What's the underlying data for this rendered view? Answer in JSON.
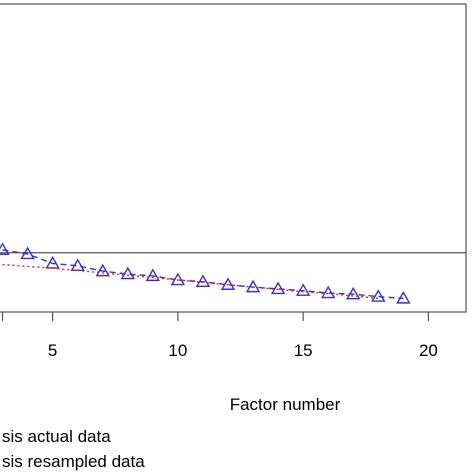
{
  "chart_data": {
    "type": "line",
    "xlabel": "Factor number",
    "ylabel": "",
    "xlim": [
      2.5,
      21.5
    ],
    "ylim": [
      0,
      5.2
    ],
    "x_ticks": [
      5,
      10,
      15,
      20
    ],
    "x_tick_labels": [
      "5",
      "10",
      "15",
      "20"
    ],
    "reference_line_y": 1,
    "series": [
      {
        "marker": "triangle",
        "line_style": "dashed",
        "color": "#3333cc",
        "x": [
          3,
          4,
          5,
          6,
          7,
          8,
          9,
          10,
          11,
          12,
          13,
          14,
          15,
          16,
          17,
          18,
          19
        ],
        "y": [
          1.05,
          0.98,
          0.82,
          0.78,
          0.69,
          0.64,
          0.61,
          0.54,
          0.51,
          0.46,
          0.42,
          0.39,
          0.36,
          0.32,
          0.3,
          0.26,
          0.23
        ]
      },
      {
        "marker": "none",
        "line_style": "dotted",
        "color": "#dd2222",
        "x": [
          3,
          4,
          5,
          6,
          7,
          8,
          9,
          10,
          11,
          12,
          13,
          14,
          15,
          16,
          17,
          18
        ],
        "y": [
          0.8,
          0.77,
          0.74,
          0.7,
          0.66,
          0.62,
          0.58,
          0.54,
          0.5,
          0.46,
          0.42,
          0.38,
          0.34,
          0.31,
          0.27,
          0.23
        ]
      }
    ],
    "legend": {
      "position": "bottom-left",
      "entries": [
        "sis actual data",
        "sis resampled data"
      ]
    }
  }
}
